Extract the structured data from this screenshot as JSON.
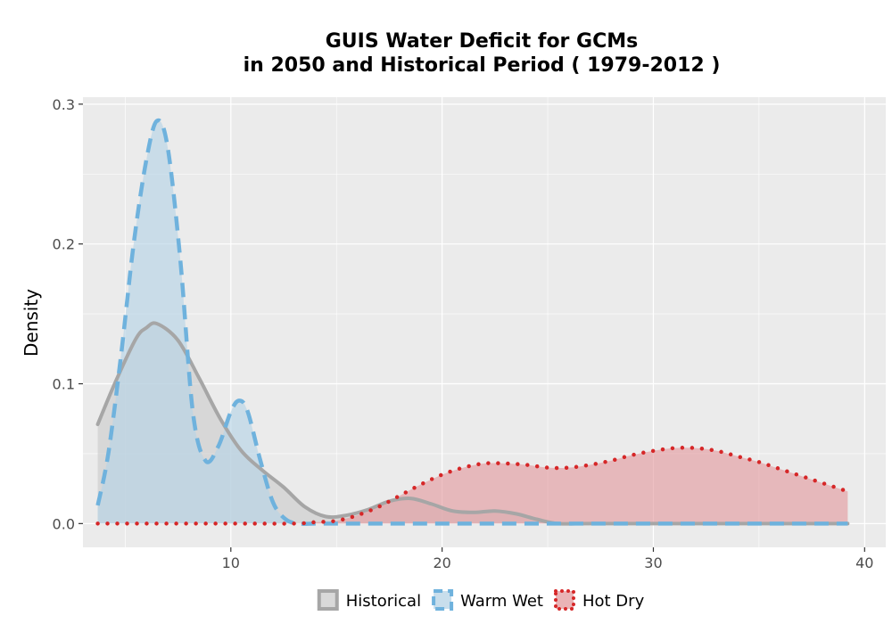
{
  "chart_data": {
    "type": "area",
    "title_lines": [
      "GUIS  Water Deficit for GCMs",
      "in 2050 and Historical Period ( 1979-2012 )"
    ],
    "xlabel": "",
    "ylabel": "Density",
    "xlim": [
      3,
      41
    ],
    "ylim": [
      -0.017,
      0.305
    ],
    "x_ticks": [
      10,
      20,
      30,
      40
    ],
    "y_ticks": [
      0.0,
      0.1,
      0.2,
      0.3
    ],
    "x_tick_labels": [
      "10",
      "20",
      "30",
      "40"
    ],
    "y_tick_labels": [
      "0.0",
      "0.1",
      "0.2",
      "0.3"
    ],
    "grid": true,
    "legend_position": "bottom",
    "series": [
      {
        "name": "Historical",
        "line_style": "solid",
        "line_color": "#a6a6a6",
        "fill_color": "#cccccc",
        "x": [
          3.7,
          4.5,
          5.5,
          6.0,
          6.5,
          7.5,
          8.5,
          9.5,
          10.5,
          11.5,
          12.5,
          13.5,
          14.5,
          15.5,
          16.5,
          17.5,
          18.5,
          19.5,
          20.5,
          21.5,
          22.5,
          23.5,
          24.5,
          25.5,
          27,
          30,
          35,
          39.2
        ],
        "y": [
          0.071,
          0.1,
          0.132,
          0.14,
          0.143,
          0.131,
          0.104,
          0.075,
          0.052,
          0.038,
          0.026,
          0.012,
          0.005,
          0.006,
          0.01,
          0.016,
          0.018,
          0.014,
          0.009,
          0.008,
          0.009,
          0.007,
          0.003,
          0.0,
          0.0,
          0.0,
          0.0,
          0.0
        ]
      },
      {
        "name": "Warm Wet",
        "line_style": "dashed",
        "line_color": "#6fb2dd",
        "fill_color": "#b5d3e6",
        "x": [
          3.7,
          4.2,
          4.8,
          5.4,
          6.0,
          6.5,
          7.0,
          7.6,
          8.2,
          8.8,
          9.4,
          10.0,
          10.4,
          10.8,
          11.4,
          12.0,
          12.6,
          13.2,
          14.0,
          16,
          20,
          25,
          30,
          35,
          39.2
        ],
        "y": [
          0.013,
          0.05,
          0.12,
          0.2,
          0.26,
          0.288,
          0.27,
          0.19,
          0.08,
          0.045,
          0.055,
          0.08,
          0.088,
          0.08,
          0.045,
          0.015,
          0.003,
          0.0,
          0.0,
          0.0,
          0.0,
          0.0,
          0.0,
          0.0,
          0.0
        ]
      },
      {
        "name": "Hot Dry",
        "line_style": "dotted",
        "line_color": "#d62728",
        "fill_color": "#e39a9e",
        "x": [
          3.7,
          10,
          13,
          14,
          15,
          16,
          17,
          18,
          19,
          20,
          21,
          22,
          23,
          24,
          25,
          26,
          27,
          28,
          29,
          30,
          31,
          32,
          33,
          34,
          35,
          36,
          37,
          38,
          39.2
        ],
        "y": [
          0.0,
          0.0,
          0.0,
          0.001,
          0.002,
          0.006,
          0.012,
          0.02,
          0.028,
          0.035,
          0.04,
          0.043,
          0.043,
          0.042,
          0.04,
          0.04,
          0.042,
          0.045,
          0.049,
          0.052,
          0.054,
          0.054,
          0.052,
          0.048,
          0.044,
          0.039,
          0.034,
          0.029,
          0.023
        ]
      }
    ]
  }
}
